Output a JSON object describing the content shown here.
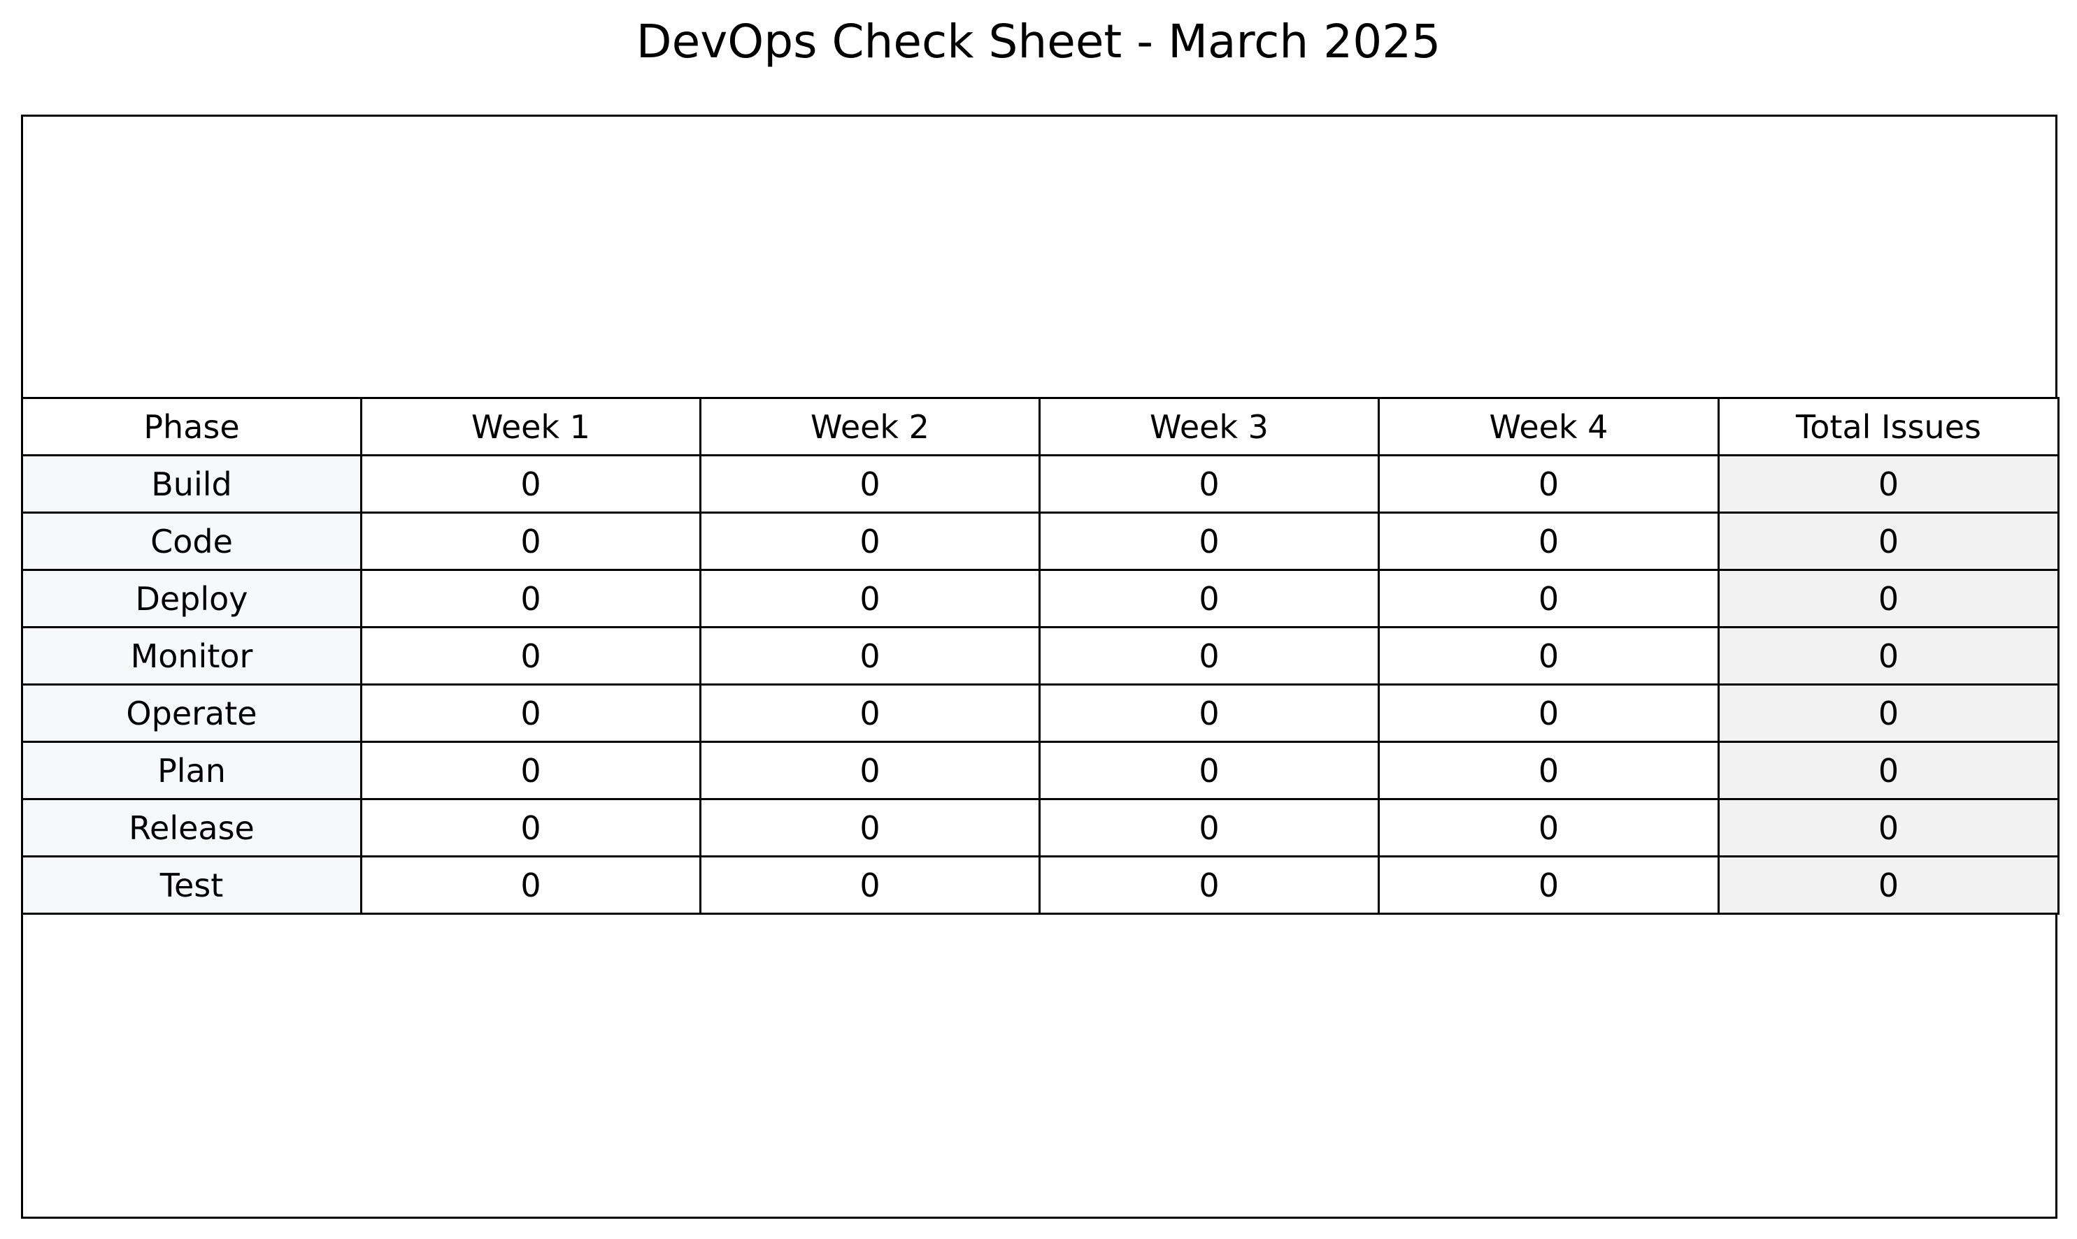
{
  "chart_data": {
    "type": "table",
    "title": "DevOps Check Sheet - March 2025",
    "columns": [
      "Phase",
      "Week 1",
      "Week 2",
      "Week 3",
      "Week 4",
      "Total Issues"
    ],
    "rows": [
      {
        "phase": "Build",
        "values": [
          0,
          0,
          0,
          0
        ],
        "total": 0
      },
      {
        "phase": "Code",
        "values": [
          0,
          0,
          0,
          0
        ],
        "total": 0
      },
      {
        "phase": "Deploy",
        "values": [
          0,
          0,
          0,
          0
        ],
        "total": 0
      },
      {
        "phase": "Monitor",
        "values": [
          0,
          0,
          0,
          0
        ],
        "total": 0
      },
      {
        "phase": "Operate",
        "values": [
          0,
          0,
          0,
          0
        ],
        "total": 0
      },
      {
        "phase": "Plan",
        "values": [
          0,
          0,
          0,
          0
        ],
        "total": 0
      },
      {
        "phase": "Release",
        "values": [
          0,
          0,
          0,
          0
        ],
        "total": 0
      },
      {
        "phase": "Test",
        "values": [
          0,
          0,
          0,
          0
        ],
        "total": 0
      }
    ]
  },
  "colors": {
    "phase_cell_bg": "#f7f8fa",
    "total_cell_bg": "#f2f2f2",
    "border": "#000000"
  }
}
